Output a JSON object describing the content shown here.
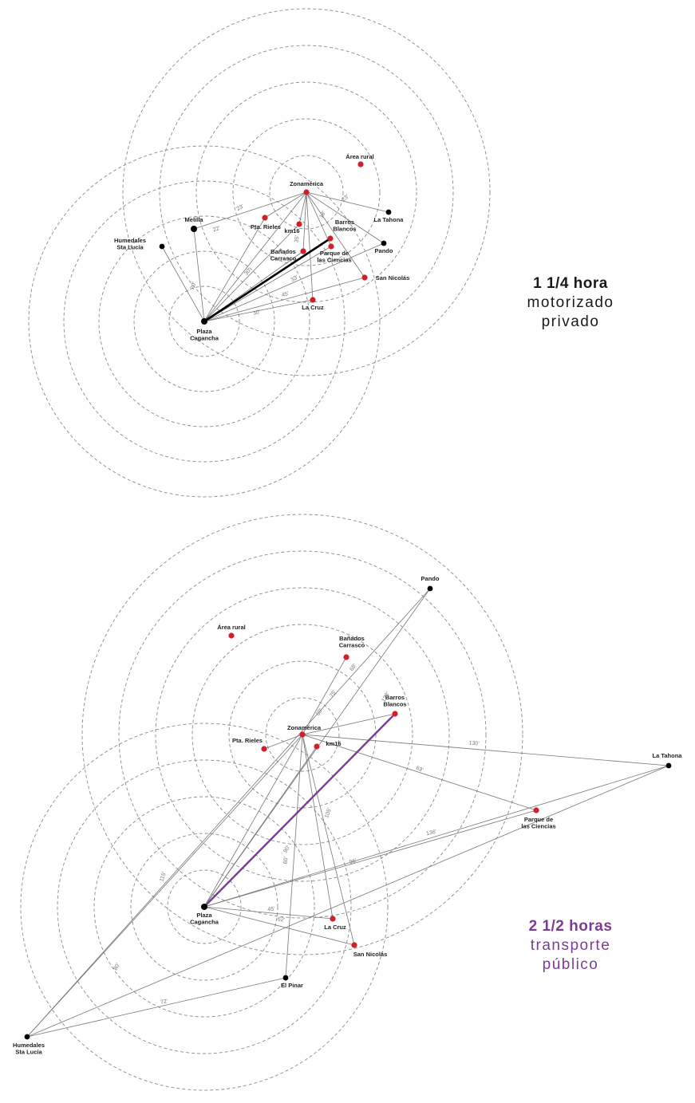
{
  "colors": {
    "rings": "#8a8a8a",
    "routes": "#777777",
    "highlight_private": "#000000",
    "highlight_public": "#7b3c95",
    "red_node": "#d0202a",
    "black_node": "#000000"
  },
  "private": {
    "caption": {
      "title": "1 1/4 hora",
      "line1": "motorizado",
      "line2": "privado"
    },
    "nodes": {
      "plaza": "Plaza\nCagancha",
      "zonamerica": "Zonamérica",
      "area_rural": "Área rural",
      "la_tahona": "La Tahona",
      "melilla": "Melilla",
      "humedales": "Humedales\nSta Lucía",
      "pta_rieles": "Pta. Rieles",
      "km16": "km16",
      "barros_blancos": "Barros\nBlancos",
      "banados": "Bañados\nCarrasco",
      "parque": "Parque de\nlas Ciencias",
      "pando": "Pando",
      "san_nicolas": "San Nicolás",
      "la_cruz": "La Cruz"
    },
    "distances": [
      "23'",
      "22'",
      "23'",
      "20'",
      "30'",
      "45'",
      "30'",
      "33'",
      "35'",
      "18'"
    ]
  },
  "public": {
    "caption": {
      "title": "2 1/2 horas",
      "line1": "transporte",
      "line2": "público"
    },
    "nodes": {
      "pando": "Pando",
      "area_rural": "Área rural",
      "banados": "Bañados\nCarrasco",
      "barros_blancos": "Barros\nBlancos",
      "zonamerica": "Zonamérica",
      "km16": "km16",
      "pta_rieles": "Pta. Rieles",
      "la_tahona": "La Tahona",
      "parque": "Parque de\nlas Ciencias",
      "plaza": "Plaza\nCagancha",
      "la_cruz": "La Cruz",
      "san_nicolas": "San Nicolás",
      "el_pinar": "El Pinar",
      "humedales": "Humedales\nSta Lucía"
    },
    "distances": [
      "138'",
      "68'",
      "75'",
      "60'",
      "130'",
      "63'",
      "136'",
      "96'",
      "105'",
      "90'",
      "115'",
      "45'",
      "62'",
      "80'",
      "72'",
      "60'"
    ]
  }
}
